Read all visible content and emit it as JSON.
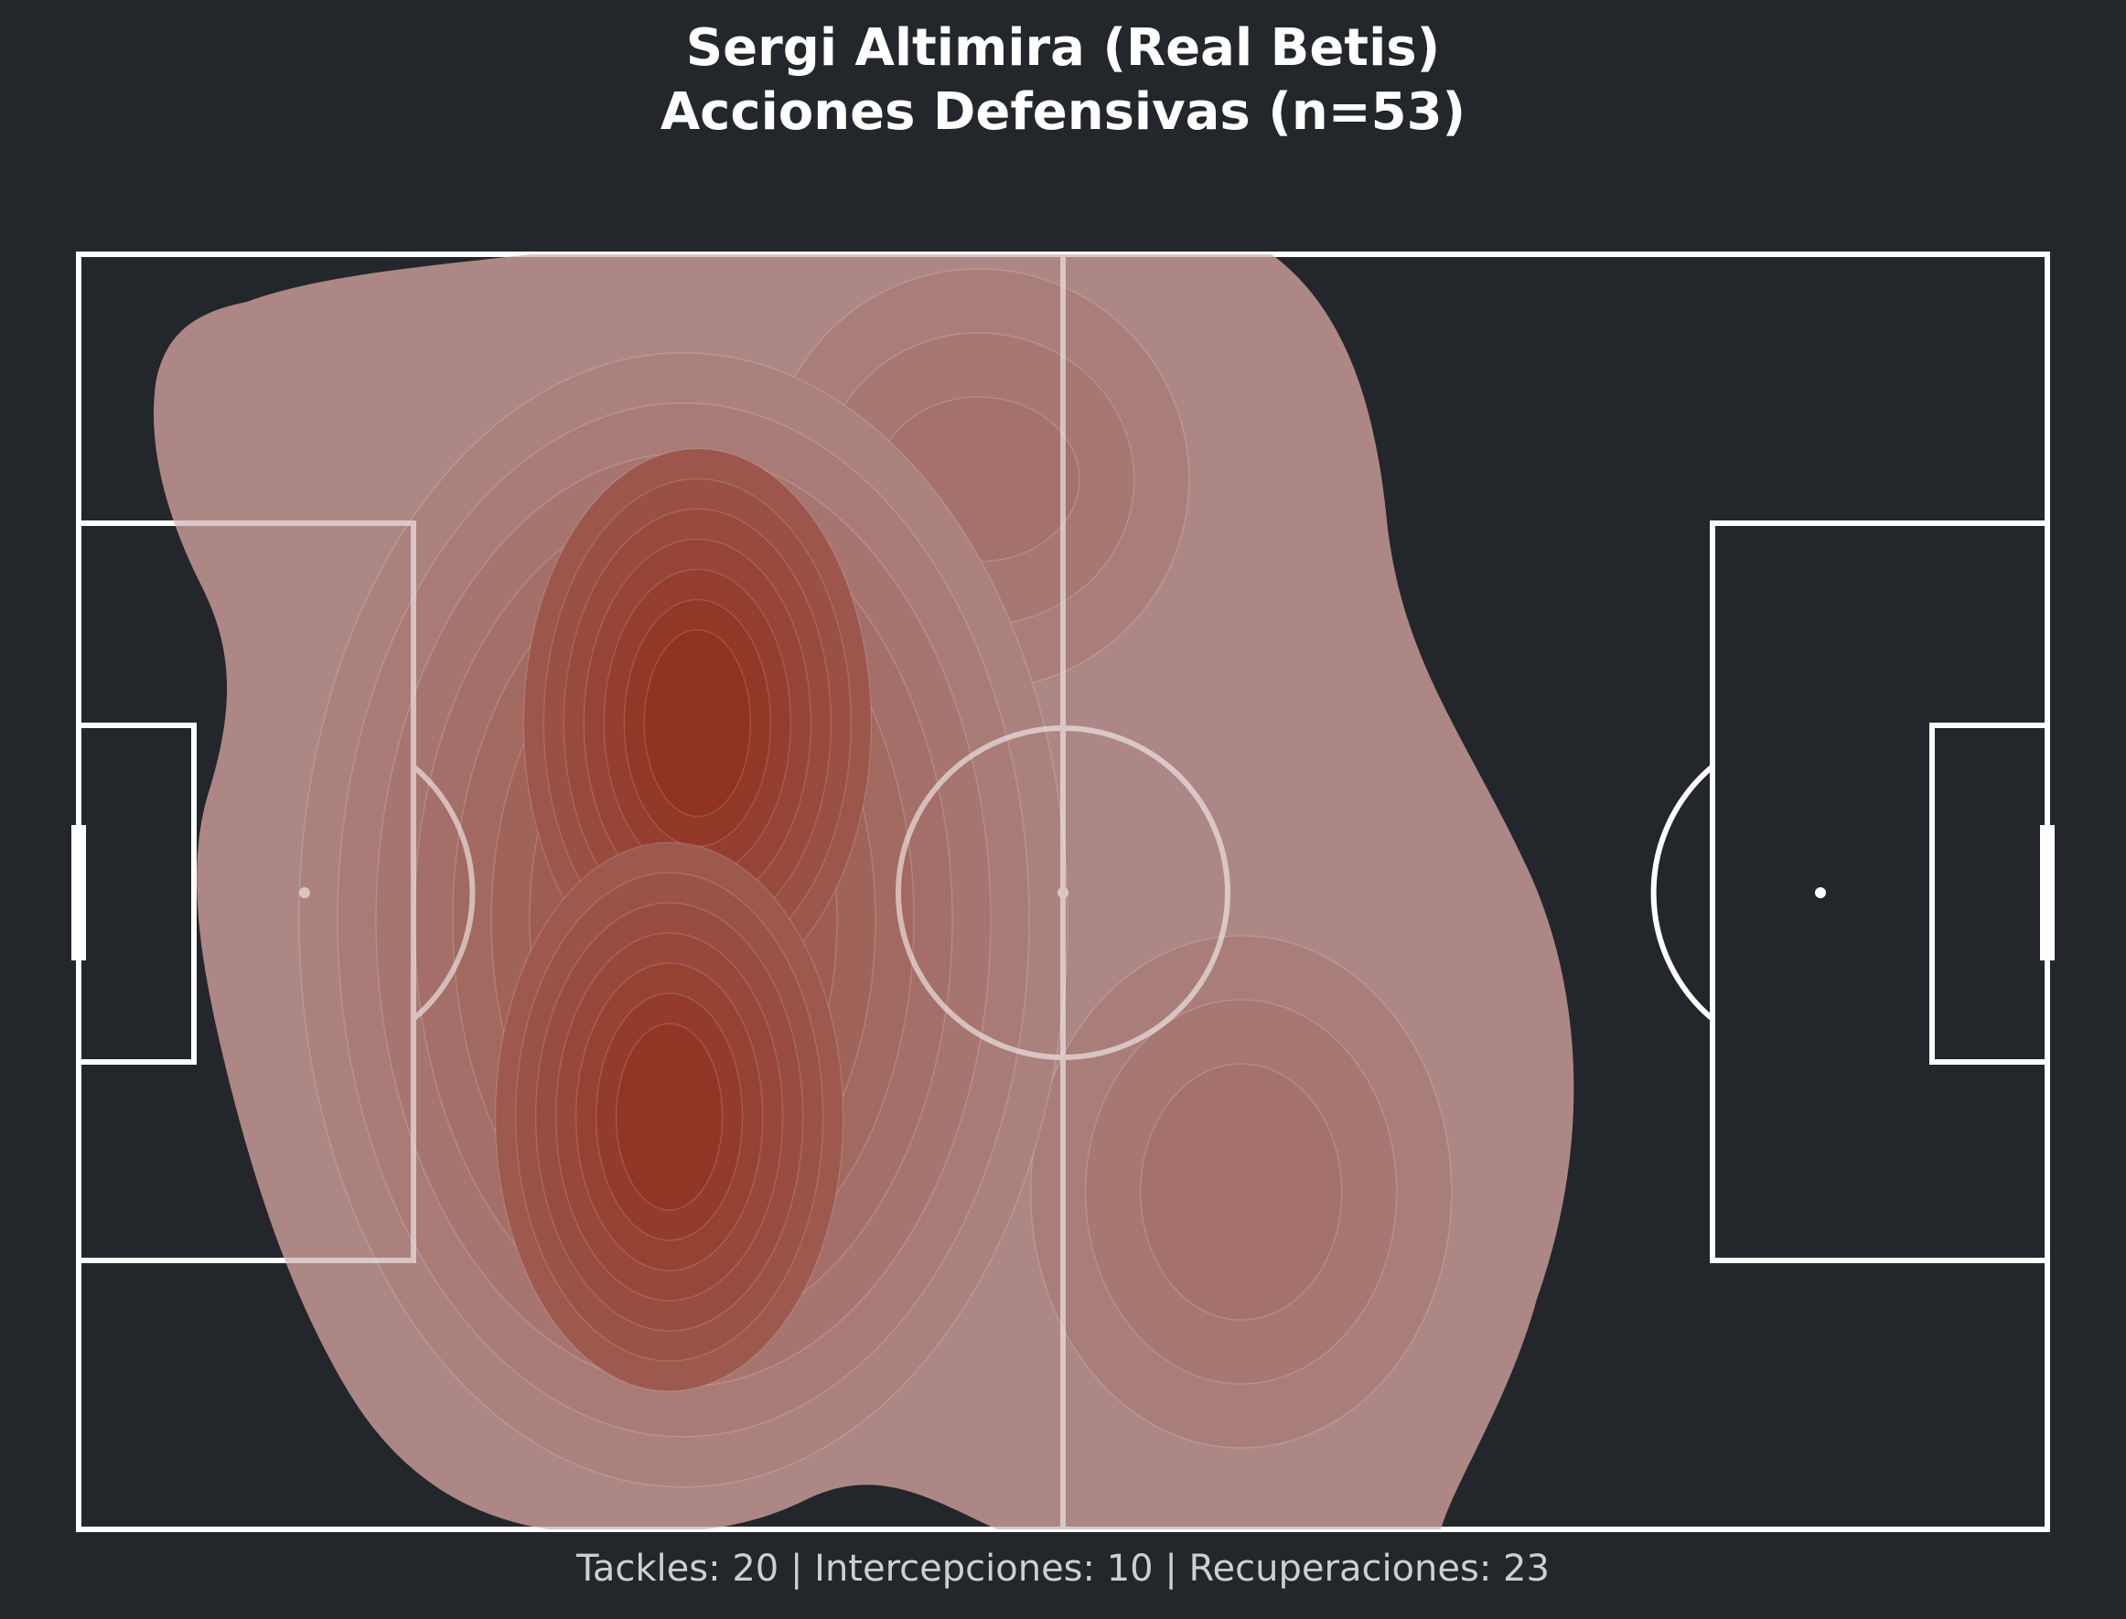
{
  "title_line1": "Sergi Altimira (Real Betis)",
  "title_line2": "Acciones Defensivas (n=53)",
  "footer": {
    "tackles_label": "Tackles:",
    "tackles_value": "20",
    "interceptions_label": "Intercepciones:",
    "interceptions_value": "10",
    "recoveries_label": "Recuperaciones:",
    "recoveries_value": "23",
    "separator": "|"
  },
  "colors": {
    "background": "#23272b",
    "pitch_lines": "#ffffff",
    "density_low": "#ad8785",
    "density_high": "#8f3220"
  },
  "chart_data": {
    "type": "heatmap",
    "subtype": "kde-density-on-pitch",
    "pitch_length": 105,
    "pitch_width": 68,
    "xlim": [
      0,
      105
    ],
    "ylim": [
      0,
      68
    ],
    "levels": 14,
    "density_peaks": [
      {
        "x": 33.0,
        "y": 43.0,
        "weight": 1.0
      },
      {
        "x": 31.5,
        "y": 22.0,
        "weight": 0.95
      },
      {
        "x": 62.0,
        "y": 18.0,
        "weight": 0.3
      },
      {
        "x": 48.0,
        "y": 56.0,
        "weight": 0.25
      }
    ],
    "counts": {
      "tackles": 20,
      "interceptions": 10,
      "recoveries": 23,
      "total": 53
    },
    "legend": "none",
    "grid": false
  }
}
